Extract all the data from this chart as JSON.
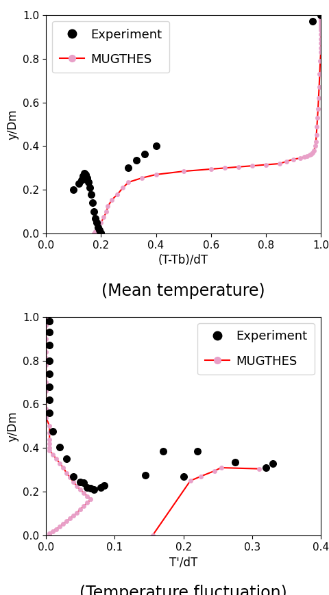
{
  "plot1": {
    "xlabel": "(T-Tb)/dT",
    "ylabel": "y/Dm",
    "title": "(Mean temperature)",
    "xlim": [
      0,
      1.0
    ],
    "ylim": [
      0,
      1.0
    ],
    "xticks": [
      0,
      0.2,
      0.4,
      0.6,
      0.8,
      1.0
    ],
    "yticks": [
      0.0,
      0.2,
      0.4,
      0.6,
      0.8,
      1.0
    ],
    "exp_x": [
      0.1,
      0.12,
      0.13,
      0.135,
      0.14,
      0.145,
      0.15,
      0.155,
      0.16,
      0.165,
      0.17,
      0.175,
      0.18,
      0.185,
      0.19,
      0.195,
      0.2,
      0.3,
      0.33,
      0.36,
      0.4,
      0.97,
      1.0
    ],
    "exp_y": [
      0.2,
      0.23,
      0.245,
      0.265,
      0.275,
      0.27,
      0.255,
      0.235,
      0.21,
      0.18,
      0.14,
      0.1,
      0.07,
      0.05,
      0.03,
      0.015,
      0.005,
      0.3,
      0.335,
      0.365,
      0.4,
      0.97,
      1.0
    ],
    "mugthes_x": [
      0.175,
      0.18,
      0.19,
      0.2,
      0.21,
      0.22,
      0.225,
      0.24,
      0.26,
      0.28,
      0.3,
      0.35,
      0.4,
      0.5,
      0.6,
      0.65,
      0.7,
      0.75,
      0.8,
      0.85,
      0.875,
      0.9,
      0.925,
      0.94,
      0.95,
      0.96,
      0.965,
      0.97,
      0.975,
      0.98,
      0.982,
      0.984,
      0.986,
      0.988,
      0.99,
      0.992,
      0.994,
      0.996,
      0.998,
      1.0,
      1.0,
      1.0,
      1.0,
      1.0,
      1.0,
      1.0,
      1.0,
      1.0,
      1.0,
      1.0,
      1.0,
      1.0,
      1.0,
      1.0,
      1.0
    ],
    "mugthes_y": [
      0.0,
      0.01,
      0.025,
      0.05,
      0.075,
      0.1,
      0.125,
      0.155,
      0.18,
      0.21,
      0.235,
      0.255,
      0.27,
      0.285,
      0.295,
      0.3,
      0.305,
      0.31,
      0.315,
      0.32,
      0.33,
      0.34,
      0.345,
      0.35,
      0.355,
      0.36,
      0.365,
      0.37,
      0.38,
      0.4,
      0.42,
      0.45,
      0.49,
      0.53,
      0.57,
      0.62,
      0.67,
      0.73,
      0.79,
      0.83,
      0.85,
      0.87,
      0.89,
      0.91,
      0.93,
      0.94,
      0.95,
      0.96,
      0.97,
      0.975,
      0.98,
      0.985,
      0.99,
      0.995,
      1.0
    ]
  },
  "plot2": {
    "xlabel": "T'/dT",
    "ylabel": "y/Dm",
    "title": "(Temperature fluctuation)",
    "xlim": [
      0,
      0.4
    ],
    "ylim": [
      0,
      1.0
    ],
    "xticks": [
      0.0,
      0.1,
      0.2,
      0.3,
      0.4
    ],
    "yticks": [
      0.0,
      0.2,
      0.4,
      0.6,
      0.8,
      1.0
    ],
    "exp_x": [
      0.005,
      0.005,
      0.005,
      0.005,
      0.005,
      0.005,
      0.005,
      0.005,
      0.01,
      0.02,
      0.03,
      0.04,
      0.05,
      0.055,
      0.06,
      0.065,
      0.07,
      0.08,
      0.085,
      0.145,
      0.17,
      0.2,
      0.22,
      0.275,
      0.32,
      0.33
    ],
    "exp_y": [
      0.98,
      0.93,
      0.87,
      0.8,
      0.74,
      0.68,
      0.62,
      0.56,
      0.475,
      0.405,
      0.35,
      0.27,
      0.245,
      0.24,
      0.22,
      0.215,
      0.21,
      0.22,
      0.23,
      0.275,
      0.385,
      0.27,
      0.385,
      0.335,
      0.31,
      0.33
    ],
    "mugthes_main_x": [
      0.0,
      0.0,
      0.0,
      0.0,
      0.0,
      0.0,
      0.0,
      0.0,
      0.0,
      0.0,
      0.0,
      0.0,
      0.0,
      0.0,
      0.0,
      0.005,
      0.005,
      0.005,
      0.005,
      0.005,
      0.005,
      0.01,
      0.015,
      0.02,
      0.025,
      0.03,
      0.035,
      0.04,
      0.045,
      0.05,
      0.055,
      0.06,
      0.065,
      0.06,
      0.055,
      0.05,
      0.045,
      0.04,
      0.035,
      0.03,
      0.025,
      0.02,
      0.015,
      0.01,
      0.005,
      0.005,
      0.005,
      0.005,
      0.005
    ],
    "mugthes_main_y": [
      1.0,
      0.98,
      0.96,
      0.93,
      0.9,
      0.87,
      0.84,
      0.81,
      0.78,
      0.74,
      0.7,
      0.66,
      0.62,
      0.58,
      0.54,
      0.5,
      0.47,
      0.44,
      0.42,
      0.4,
      0.39,
      0.37,
      0.35,
      0.33,
      0.31,
      0.285,
      0.265,
      0.245,
      0.225,
      0.21,
      0.195,
      0.18,
      0.165,
      0.15,
      0.135,
      0.12,
      0.105,
      0.09,
      0.08,
      0.065,
      0.055,
      0.04,
      0.03,
      0.02,
      0.01,
      0.007,
      0.004,
      0.002,
      0.0
    ],
    "mugthes_right_x": [
      0.155,
      0.21,
      0.225,
      0.245,
      0.255,
      0.31
    ],
    "mugthes_right_y": [
      0.0,
      0.25,
      0.27,
      0.295,
      0.31,
      0.305
    ]
  },
  "exp_color": "#000000",
  "mugthes_line_color": "#ff0000",
  "mugthes_marker_color": "#e8a0c8",
  "legend_loc1": "upper left",
  "legend_loc2": "upper right",
  "title_fontsize": 17,
  "label_fontsize": 12,
  "tick_fontsize": 11,
  "legend_fontsize": 13
}
